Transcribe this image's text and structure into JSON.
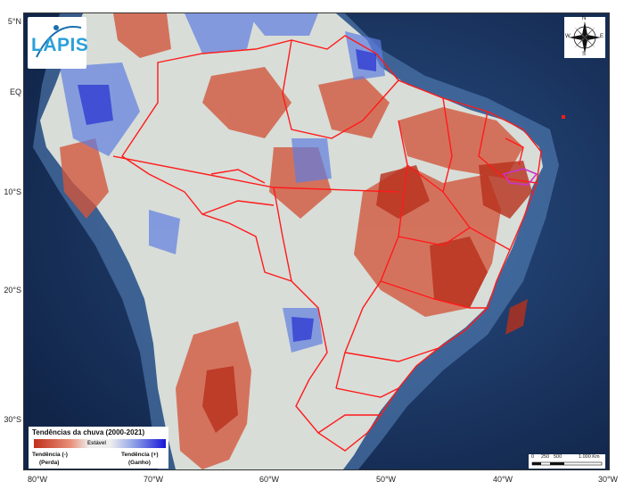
{
  "map": {
    "lat_labels": [
      "5°N",
      "EQ",
      "10°S",
      "20°S",
      "30°S"
    ],
    "lon_labels": [
      "80°W",
      "70°W",
      "60°W",
      "50°W",
      "40°W",
      "30°W"
    ]
  },
  "logo": {
    "text": "LAPIS"
  },
  "compass": {
    "n": "N",
    "s": "S",
    "e": "E",
    "w": "W"
  },
  "legend": {
    "title": "Tendências da chuva (2000-2021)",
    "stable_label": "Estável",
    "neg_label": "Tendência (-)",
    "neg_sub": "(Perda)",
    "pos_label": "Tendência (+)",
    "pos_sub": "(Ganho)",
    "colors": {
      "loss": "#c0301c",
      "stable": "#eeeeee",
      "gain": "#1717d8"
    }
  },
  "scale": {
    "ticks": [
      "0",
      "250",
      "500",
      "1.000 Km"
    ]
  },
  "colors": {
    "ocean": "#17305c",
    "boundaries": "#ff1a1a",
    "land": "#d8ddd8"
  }
}
